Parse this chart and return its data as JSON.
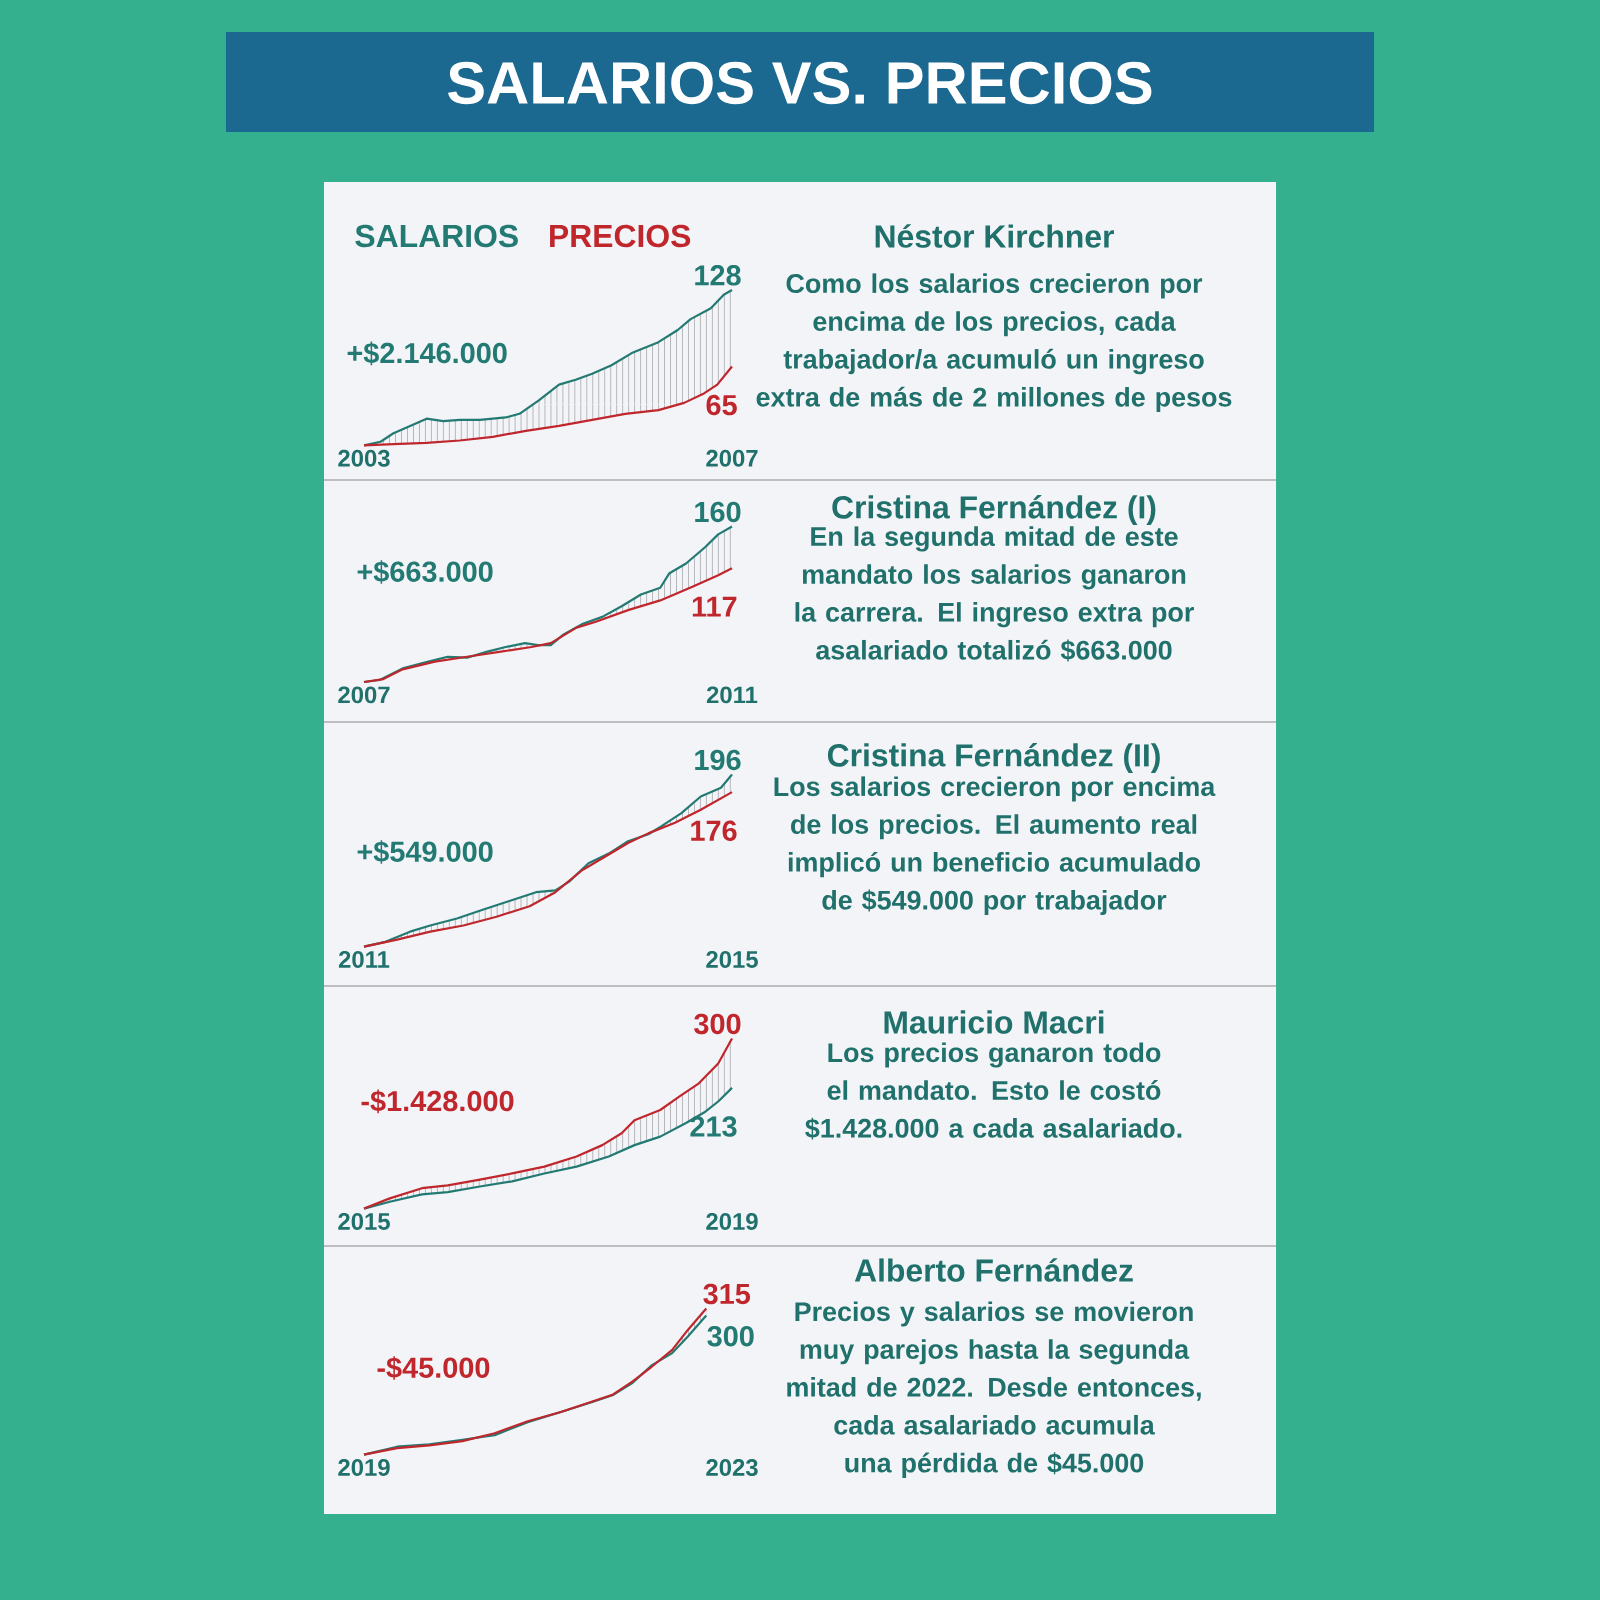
{
  "chart_data": [
    {
      "type": "other",
      "title": "SALARIOS VS. PRECIOS"
    },
    {
      "type": "line",
      "annotations": [
        "+$2.146.000"
      ],
      "xlim": [
        2003,
        2007
      ],
      "xticks": [
        2003,
        2007
      ],
      "tick_labels": "x",
      "legend": "top left",
      "series": [
        {
          "name": "SALARIOS",
          "color": "#237a73",
          "x": [
            2003,
            2003.18,
            2003.32,
            2003.47,
            2003.68,
            2003.86,
            2004.04,
            2004.26,
            2004.54,
            2004.69,
            2004.9,
            2005.12,
            2005.3,
            2005.48,
            2005.69,
            2005.91,
            2006.2,
            2006.41,
            2006.55,
            2006.77,
            2006.91,
            2007
          ],
          "values": [
            0,
            3,
            10,
            15,
            22,
            20,
            21,
            21,
            23,
            26,
            37,
            50,
            54,
            59,
            66,
            76,
            85,
            95,
            104,
            113,
            124,
            128
          ],
          "value_labels": [
            null,
            null,
            null,
            null,
            null,
            null,
            null,
            null,
            null,
            null,
            null,
            null,
            null,
            null,
            null,
            null,
            null,
            null,
            null,
            null,
            null,
            "128"
          ]
        },
        {
          "name": "PRECIOS",
          "color": "#c0272d",
          "x": [
            2003,
            2003.32,
            2003.68,
            2004.04,
            2004.4,
            2004.76,
            2005.12,
            2005.48,
            2005.84,
            2006.2,
            2006.48,
            2006.7,
            2006.84,
            2007
          ],
          "values": [
            0,
            1,
            2,
            4,
            7,
            12,
            16,
            21,
            26,
            29,
            35,
            43,
            50,
            65
          ],
          "value_labels": [
            null,
            null,
            null,
            null,
            null,
            null,
            null,
            null,
            null,
            null,
            null,
            null,
            null,
            "65"
          ]
        }
      ]
    },
    {
      "type": "other",
      "title": "Néstor Kirchner",
      "subtitle": "Como los salarios crecieron por encima de los precios, cada trabajador/a acumuló un ingreso extra de más de 2 millones de pesos"
    },
    {
      "type": "line",
      "annotations": [
        "+$663.000"
      ],
      "xlim": [
        2007,
        2011
      ],
      "xticks": [
        2007,
        2011
      ],
      "tick_labels": "x",
      "series": [
        {
          "color": "#237a73",
          "x": [
            2007,
            2007.17,
            2007.42,
            2007.7,
            2007.91,
            2008.12,
            2008.33,
            2008.54,
            2008.75,
            2008.89,
            2009.03,
            2009.17,
            2009.38,
            2009.59,
            2009.8,
            2010.01,
            2010.22,
            2010.32,
            2010.5,
            2010.71,
            2010.85,
            2011
          ],
          "values": [
            0,
            2,
            14,
            21,
            26,
            25,
            31,
            36,
            40,
            38,
            38,
            49,
            60,
            67,
            78,
            90,
            97,
            112,
            122,
            139,
            152,
            160
          ],
          "value_labels": [
            null,
            null,
            null,
            null,
            null,
            null,
            null,
            null,
            null,
            null,
            null,
            null,
            null,
            null,
            null,
            null,
            null,
            null,
            null,
            null,
            null,
            "160"
          ]
        },
        {
          "color": "#c0272d",
          "x": [
            2007,
            2007.21,
            2007.42,
            2007.77,
            2008.12,
            2008.47,
            2008.82,
            2009.03,
            2009.31,
            2009.52,
            2009.87,
            2010.22,
            2010.57,
            2010.85,
            2011
          ],
          "values": [
            0,
            3,
            13,
            21,
            26,
            31,
            36,
            40,
            56,
            62,
            74,
            84,
            98,
            110,
            117
          ],
          "value_labels": [
            null,
            null,
            null,
            null,
            null,
            null,
            null,
            null,
            null,
            null,
            null,
            null,
            null,
            null,
            "117"
          ]
        }
      ]
    },
    {
      "type": "other",
      "title": "Cristina Fernández (I)",
      "subtitle": "En la segunda mitad de este mandato los salarios ganaron la carrera. El ingreso extra por asalariado totalizó $663.000"
    },
    {
      "type": "line",
      "annotations": [
        "+$549.000"
      ],
      "xlim": [
        2011,
        2015
      ],
      "xticks": [
        2011,
        2015
      ],
      "tick_labels": "x",
      "series": [
        {
          "color": "#237a73",
          "x": [
            2011,
            2011.22,
            2011.5,
            2011.72,
            2012.01,
            2012.29,
            2012.58,
            2012.87,
            2013.08,
            2013.23,
            2013.44,
            2013.66,
            2013.87,
            2014.09,
            2014.23,
            2014.45,
            2014.66,
            2014.88,
            2015
          ],
          "values": [
            0,
            5,
            17,
            24,
            32,
            42,
            52,
            62,
            64,
            74,
            95,
            106,
            120,
            128,
            137,
            152,
            171,
            181,
            196
          ],
          "value_labels": [
            null,
            null,
            null,
            null,
            null,
            null,
            null,
            null,
            null,
            null,
            null,
            null,
            null,
            null,
            null,
            null,
            null,
            null,
            "196"
          ]
        },
        {
          "color": "#c0272d",
          "x": [
            2011,
            2011.36,
            2011.72,
            2012.08,
            2012.44,
            2012.8,
            2013.08,
            2013.37,
            2013.66,
            2013.87,
            2014.09,
            2014.38,
            2014.66,
            2015
          ],
          "values": [
            0,
            8,
            17,
            24,
            34,
            46,
            62,
            87,
            105,
            118,
            129,
            141,
            156,
            176
          ],
          "value_labels": [
            null,
            null,
            null,
            null,
            null,
            null,
            null,
            null,
            null,
            null,
            null,
            null,
            null,
            "176"
          ]
        }
      ]
    },
    {
      "type": "other",
      "title": "Cristina Fernández (II)",
      "subtitle": "Los salarios crecieron por encima de los precios. El aumento real implicó un beneficio acumulado de $549.000 por trabajador"
    },
    {
      "type": "line",
      "annotations": [
        "-$1.428.000"
      ],
      "xlim": [
        2015,
        2019
      ],
      "xticks": [
        2015,
        2019
      ],
      "tick_labels": "x",
      "series": [
        {
          "color": "#237a73",
          "x": [
            2015,
            2015.28,
            2015.63,
            2015.91,
            2016.26,
            2016.61,
            2016.96,
            2017.31,
            2017.66,
            2017.94,
            2018.22,
            2018.5,
            2018.71,
            2018.85,
            2019
          ],
          "values": [
            0,
            12,
            25,
            29,
            39,
            48,
            62,
            74,
            92,
            112,
            127,
            151,
            171,
            189,
            213
          ],
          "value_labels": [
            null,
            null,
            null,
            null,
            null,
            null,
            null,
            null,
            null,
            null,
            null,
            null,
            null,
            null,
            "213"
          ]
        },
        {
          "color": "#c0272d",
          "x": [
            2015,
            2015.28,
            2015.63,
            2015.91,
            2016.26,
            2016.61,
            2016.96,
            2017.31,
            2017.59,
            2017.8,
            2017.94,
            2018.22,
            2018.43,
            2018.64,
            2018.85,
            2019
          ],
          "values": [
            0,
            18,
            36,
            41,
            51,
            62,
            74,
            92,
            112,
            133,
            156,
            174,
            198,
            221,
            256,
            300
          ],
          "value_labels": [
            null,
            null,
            null,
            null,
            null,
            null,
            null,
            null,
            null,
            null,
            null,
            null,
            null,
            null,
            null,
            "300"
          ]
        }
      ]
    },
    {
      "type": "other",
      "title": "Mauricio Macri",
      "subtitle": "Los precios ganaron todo el mandato. Esto le costó $1.428.000 a cada asalariado."
    },
    {
      "type": "line",
      "annotations": [
        "-$45.000"
      ],
      "xlim": [
        2019,
        2023
      ],
      "xticks": [
        2019,
        2023
      ],
      "tick_labels": "x",
      "series": [
        {
          "color": "#237a73",
          "x": [
            2019,
            2019.36,
            2019.71,
            2020.07,
            2020.42,
            2020.78,
            2021.14,
            2021.49,
            2021.7,
            2021.92,
            2022.13,
            2022.35,
            2022.52,
            2022.72
          ],
          "values": [
            0,
            17,
            22,
            32,
            42,
            70,
            92,
            114,
            128,
            155,
            193,
            219,
            255,
            300
          ],
          "value_labels": [
            null,
            null,
            null,
            null,
            null,
            null,
            null,
            null,
            null,
            null,
            null,
            null,
            null,
            "300"
          ]
        },
        {
          "color": "#c0272d",
          "x": [
            2019,
            2019.36,
            2019.71,
            2020.07,
            2020.42,
            2020.78,
            2021.14,
            2021.49,
            2021.7,
            2021.92,
            2022.13,
            2022.35,
            2022.52,
            2022.72
          ],
          "values": [
            0,
            14,
            20,
            29,
            46,
            72,
            92,
            115,
            129,
            158,
            190,
            226,
            269,
            315
          ],
          "value_labels": [
            null,
            null,
            null,
            null,
            null,
            null,
            null,
            null,
            null,
            null,
            null,
            null,
            null,
            "315"
          ]
        }
      ]
    },
    {
      "type": "other",
      "title": "Alberto Fernández",
      "subtitle": "Precios y salarios se movieron muy parejos hasta la segunda mitad de 2022. Desde entonces, cada asalariado acumula una pérdida de $45.000"
    }
  ]
}
